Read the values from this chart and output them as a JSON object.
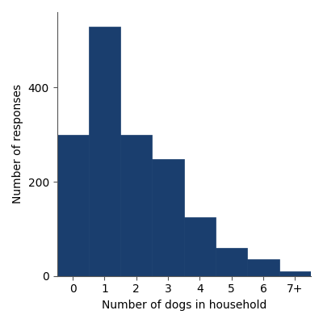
{
  "tick_labels": [
    "0",
    "1",
    "2",
    "3",
    "4",
    "5",
    "6",
    "7+"
  ],
  "values": [
    300,
    530,
    300,
    248,
    125,
    60,
    35,
    10
  ],
  "bar_color": "#1a3e6e",
  "bar_edge_color": "#1a3e6e",
  "xlabel": "Number of dogs in household",
  "ylabel": "Number of responses",
  "ylim": [
    0,
    560
  ],
  "yticks": [
    0,
    200,
    400
  ],
  "background_color": "#ffffff",
  "tick_font_size": 10,
  "label_font_size": 10
}
